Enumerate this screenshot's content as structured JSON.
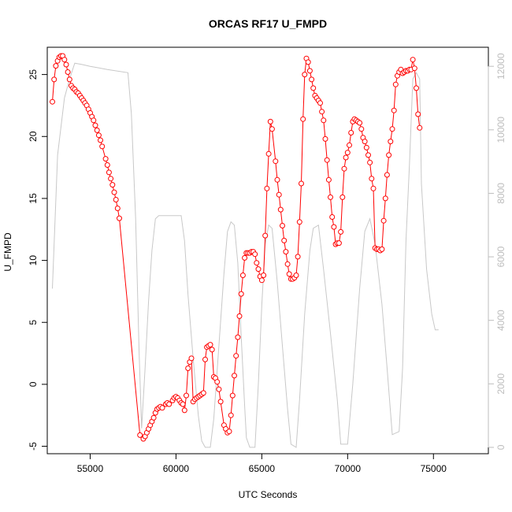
{
  "chart_data": {
    "type": "line",
    "title": "ORCAS RF17 U_FMPD",
    "xlabel": "UTC Seconds",
    "ylabel": "U_FMPD",
    "xlim": [
      52500,
      78200
    ],
    "ylim": [
      -5.6,
      27.2
    ],
    "y2lim": [
      -200,
      12600
    ],
    "x_ticks": [
      55000,
      60000,
      65000,
      70000,
      75000
    ],
    "x_tick_labels": [
      "55000",
      "60000",
      "65000",
      "70000",
      "75000"
    ],
    "y_ticks": [
      -5,
      0,
      5,
      10,
      15,
      20,
      25
    ],
    "y_tick_labels": [
      "-5",
      "0",
      "5",
      "10",
      "15",
      "20",
      "25"
    ],
    "y2_ticks": [
      0,
      2000,
      4000,
      6000,
      8000,
      10000,
      12000
    ],
    "y2_tick_labels": [
      "0",
      "2000",
      "4000",
      "6000",
      "8000",
      "10000",
      "12000"
    ],
    "colors": {
      "series_main": "#ff0000",
      "series_secondary": "#c8c8c8",
      "axis": "#000000",
      "axis_right": "#bdbdbd"
    },
    "series": [
      {
        "axis": "left",
        "style": "points+line",
        "points": [
          [
            52800,
            22.8
          ],
          [
            52900,
            24.6
          ],
          [
            53000,
            25.7
          ],
          [
            53100,
            26.1
          ],
          [
            53200,
            26.4
          ],
          [
            53300,
            26.5
          ],
          [
            53400,
            26.5
          ],
          [
            53500,
            26.2
          ],
          [
            53600,
            25.8
          ],
          [
            53700,
            25.2
          ],
          [
            53800,
            24.6
          ],
          [
            53900,
            24.1
          ],
          [
            54000,
            23.9
          ],
          [
            54100,
            23.8
          ],
          [
            54200,
            23.6
          ],
          [
            54300,
            23.5
          ],
          [
            54400,
            23.3
          ],
          [
            54500,
            23.1
          ],
          [
            54600,
            22.9
          ],
          [
            54700,
            22.7
          ],
          [
            54800,
            22.5
          ],
          [
            54900,
            22.2
          ],
          [
            55000,
            21.9
          ],
          [
            55100,
            21.6
          ],
          [
            55200,
            21.3
          ],
          [
            55300,
            20.9
          ],
          [
            55400,
            20.5
          ],
          [
            55500,
            20.1
          ],
          [
            55600,
            19.7
          ],
          [
            55700,
            19.2
          ],
          [
            55900,
            18.2
          ],
          [
            56000,
            17.7
          ],
          [
            56100,
            17.1
          ],
          [
            56200,
            16.6
          ],
          [
            56300,
            16.1
          ],
          [
            56400,
            15.5
          ],
          [
            56500,
            14.9
          ],
          [
            56600,
            14.2
          ],
          [
            56700,
            13.4
          ],
          [
            57900,
            -4.1
          ],
          [
            58100,
            -4.4
          ],
          [
            58200,
            -4.2
          ],
          [
            58300,
            -3.9
          ],
          [
            58400,
            -3.6
          ],
          [
            58500,
            -3.3
          ],
          [
            58600,
            -3.0
          ],
          [
            58700,
            -2.7
          ],
          [
            58800,
            -2.3
          ],
          [
            58900,
            -2.0
          ],
          [
            59000,
            -1.9
          ],
          [
            59100,
            -1.8
          ],
          [
            59200,
            -1.9
          ],
          [
            59400,
            -1.6
          ],
          [
            59500,
            -1.5
          ],
          [
            59600,
            -1.6
          ],
          [
            59800,
            -1.3
          ],
          [
            59900,
            -1.1
          ],
          [
            60000,
            -1.0
          ],
          [
            60100,
            -1.1
          ],
          [
            60200,
            -1.3
          ],
          [
            60300,
            -1.5
          ],
          [
            60400,
            -1.6
          ],
          [
            60500,
            -2.1
          ],
          [
            60600,
            -0.9
          ],
          [
            60700,
            1.3
          ],
          [
            60800,
            1.8
          ],
          [
            60900,
            2.1
          ],
          [
            61000,
            -1.4
          ],
          [
            61100,
            -1.2
          ],
          [
            61200,
            -1.1
          ],
          [
            61300,
            -1.0
          ],
          [
            61400,
            -0.9
          ],
          [
            61500,
            -0.8
          ],
          [
            61600,
            -0.7
          ],
          [
            61700,
            2.0
          ],
          [
            61800,
            3.0
          ],
          [
            61900,
            3.1
          ],
          [
            62000,
            3.2
          ],
          [
            62100,
            2.8
          ],
          [
            62200,
            0.6
          ],
          [
            62300,
            0.5
          ],
          [
            62400,
            0.2
          ],
          [
            62500,
            -0.4
          ],
          [
            62600,
            -1.4
          ],
          [
            62800,
            -3.3
          ],
          [
            62900,
            -3.6
          ],
          [
            63000,
            -3.9
          ],
          [
            63100,
            -3.8
          ],
          [
            63200,
            -2.5
          ],
          [
            63300,
            -0.9
          ],
          [
            63400,
            0.7
          ],
          [
            63500,
            2.3
          ],
          [
            63600,
            3.8
          ],
          [
            63700,
            5.5
          ],
          [
            63800,
            7.3
          ],
          [
            63900,
            8.8
          ],
          [
            64000,
            10.2
          ],
          [
            64100,
            10.6
          ],
          [
            64200,
            10.6
          ],
          [
            64300,
            10.6
          ],
          [
            64400,
            10.7
          ],
          [
            64500,
            10.7
          ],
          [
            64600,
            10.5
          ],
          [
            64700,
            9.8
          ],
          [
            64800,
            9.3
          ],
          [
            64900,
            8.7
          ],
          [
            65000,
            8.4
          ],
          [
            65100,
            8.8
          ],
          [
            65200,
            12.0
          ],
          [
            65300,
            15.8
          ],
          [
            65400,
            18.6
          ],
          [
            65500,
            21.2
          ],
          [
            65600,
            20.6
          ],
          [
            65800,
            18.0
          ],
          [
            65900,
            16.5
          ],
          [
            66000,
            15.3
          ],
          [
            66100,
            14.1
          ],
          [
            66200,
            12.8
          ],
          [
            66300,
            11.6
          ],
          [
            66400,
            10.7
          ],
          [
            66500,
            9.7
          ],
          [
            66600,
            8.9
          ],
          [
            66700,
            8.5
          ],
          [
            66800,
            8.5
          ],
          [
            66900,
            8.6
          ],
          [
            67000,
            8.8
          ],
          [
            67100,
            10.3
          ],
          [
            67200,
            13.1
          ],
          [
            67300,
            16.2
          ],
          [
            67400,
            21.4
          ],
          [
            67500,
            25.0
          ],
          [
            67600,
            26.3
          ],
          [
            67700,
            26.0
          ],
          [
            67800,
            25.3
          ],
          [
            67900,
            24.6
          ],
          [
            68000,
            23.9
          ],
          [
            68100,
            23.3
          ],
          [
            68200,
            23.1
          ],
          [
            68300,
            22.9
          ],
          [
            68400,
            22.7
          ],
          [
            68500,
            22.0
          ],
          [
            68600,
            21.3
          ],
          [
            68700,
            19.8
          ],
          [
            68800,
            18.1
          ],
          [
            68900,
            16.5
          ],
          [
            69000,
            15.1
          ],
          [
            69100,
            13.5
          ],
          [
            69200,
            12.7
          ],
          [
            69300,
            11.3
          ],
          [
            69400,
            11.4
          ],
          [
            69500,
            11.4
          ],
          [
            69600,
            12.3
          ],
          [
            69700,
            15.1
          ],
          [
            69800,
            17.4
          ],
          [
            69900,
            18.3
          ],
          [
            70000,
            18.7
          ],
          [
            70100,
            19.3
          ],
          [
            70200,
            20.3
          ],
          [
            70300,
            21.2
          ],
          [
            70400,
            21.4
          ],
          [
            70500,
            21.3
          ],
          [
            70600,
            21.2
          ],
          [
            70700,
            21.1
          ],
          [
            70800,
            20.6
          ],
          [
            70900,
            19.9
          ],
          [
            71000,
            19.6
          ],
          [
            71100,
            19.1
          ],
          [
            71200,
            18.5
          ],
          [
            71300,
            17.9
          ],
          [
            71400,
            16.6
          ],
          [
            71500,
            15.8
          ],
          [
            71600,
            11.0
          ],
          [
            71700,
            10.9
          ],
          [
            71800,
            10.9
          ],
          [
            71900,
            10.8
          ],
          [
            72000,
            10.9
          ],
          [
            72100,
            13.2
          ],
          [
            72200,
            15.0
          ],
          [
            72300,
            16.9
          ],
          [
            72400,
            18.5
          ],
          [
            72500,
            19.6
          ],
          [
            72600,
            20.6
          ],
          [
            72700,
            22.1
          ],
          [
            72800,
            24.2
          ],
          [
            72900,
            24.9
          ],
          [
            73000,
            25.2
          ],
          [
            73100,
            25.4
          ],
          [
            73200,
            25.1
          ],
          [
            73300,
            25.2
          ],
          [
            73400,
            25.3
          ],
          [
            73500,
            25.3
          ],
          [
            73600,
            25.4
          ],
          [
            73700,
            25.4
          ],
          [
            73800,
            26.2
          ],
          [
            73900,
            25.5
          ],
          [
            74000,
            23.9
          ],
          [
            74100,
            21.8
          ],
          [
            74200,
            20.7
          ]
        ]
      },
      {
        "axis": "right",
        "style": "line",
        "points": [
          [
            52800,
            5000
          ],
          [
            53100,
            9200
          ],
          [
            53500,
            11000
          ],
          [
            53800,
            11600
          ],
          [
            54100,
            12100
          ],
          [
            54500,
            12060
          ],
          [
            55000,
            12000
          ],
          [
            56000,
            11900
          ],
          [
            57200,
            11800
          ],
          [
            57400,
            10500
          ],
          [
            57650,
            7200
          ],
          [
            57850,
            3000
          ],
          [
            58000,
            600
          ],
          [
            58200,
            2500
          ],
          [
            58400,
            4600
          ],
          [
            58600,
            6200
          ],
          [
            58800,
            7200
          ],
          [
            59000,
            7300
          ],
          [
            59500,
            7300
          ],
          [
            60000,
            7300
          ],
          [
            60300,
            7300
          ],
          [
            60500,
            6500
          ],
          [
            60700,
            4800
          ],
          [
            61000,
            2800
          ],
          [
            61300,
            1000
          ],
          [
            61500,
            200
          ],
          [
            61700,
            0
          ],
          [
            62000,
            0
          ],
          [
            62200,
            900
          ],
          [
            62500,
            3200
          ],
          [
            62800,
            5500
          ],
          [
            63000,
            6800
          ],
          [
            63200,
            7100
          ],
          [
            63400,
            7000
          ],
          [
            63600,
            5800
          ],
          [
            63800,
            3500
          ],
          [
            64000,
            1300
          ],
          [
            64100,
            300
          ],
          [
            64300,
            0
          ],
          [
            64600,
            0
          ],
          [
            64800,
            2000
          ],
          [
            65000,
            4500
          ],
          [
            65200,
            6400
          ],
          [
            65400,
            7000
          ],
          [
            65600,
            6900
          ],
          [
            65900,
            5200
          ],
          [
            66200,
            3200
          ],
          [
            66500,
            1200
          ],
          [
            66700,
            100
          ],
          [
            67000,
            0
          ],
          [
            67200,
            1500
          ],
          [
            67500,
            4200
          ],
          [
            67800,
            6200
          ],
          [
            68000,
            6900
          ],
          [
            68300,
            7000
          ],
          [
            68600,
            5600
          ],
          [
            69000,
            3600
          ],
          [
            69400,
            1500
          ],
          [
            69600,
            100
          ],
          [
            70000,
            100
          ],
          [
            70300,
            2000
          ],
          [
            70700,
            5000
          ],
          [
            71000,
            6800
          ],
          [
            71300,
            7200
          ],
          [
            71600,
            6400
          ],
          [
            72000,
            4500
          ],
          [
            72300,
            2500
          ],
          [
            72600,
            400
          ],
          [
            73000,
            500
          ],
          [
            73200,
            2500
          ],
          [
            73400,
            6500
          ],
          [
            73600,
            8900
          ],
          [
            73800,
            11600
          ],
          [
            74000,
            11800
          ],
          [
            74200,
            11600
          ],
          [
            74300,
            8300
          ],
          [
            74600,
            5600
          ],
          [
            74900,
            4200
          ],
          [
            75100,
            3700
          ],
          [
            75300,
            3700
          ]
        ]
      }
    ]
  }
}
